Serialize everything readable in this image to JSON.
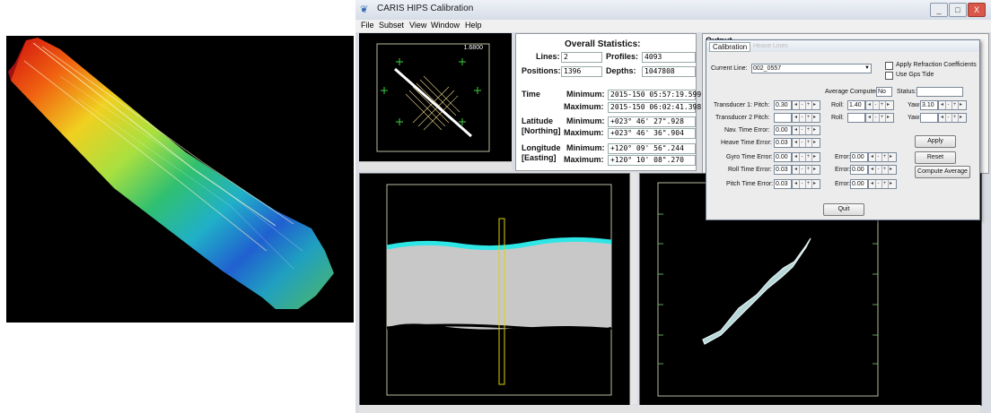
{
  "window": {
    "title": "CARIS HIPS Calibration",
    "controls": [
      "_",
      "□",
      "X"
    ]
  },
  "menu": [
    "File",
    "Subset",
    "View",
    "Window",
    "Help"
  ],
  "overview": {
    "scale_label": "1.6800"
  },
  "statistics": {
    "heading": "Overall Statistics:",
    "lines_label": "Lines:",
    "lines_value": "2",
    "profiles_label": "Profiles:",
    "profiles_value": "4093",
    "positions_label": "Positions:",
    "positions_value": "1396",
    "depths_label": "Depths:",
    "depths_value": "1047808",
    "time_label": "Time",
    "latitude_label": "Latitude",
    "latitude_sub": "[Northing]",
    "longitude_label": "Longitude",
    "longitude_sub": "[Easting]",
    "minimum_label": "Minimum:",
    "maximum_label": "Maximum:",
    "time_min": "2015-150 05:57:19.599",
    "time_max": "2015-150 06:02:41.398",
    "lat_min": "+023° 46' 27\".928",
    "lat_max": "+023° 46' 36\".904",
    "lon_min": "+120° 09' 56\".244",
    "lon_max": "+120° 10' 08\".270"
  },
  "output_pane": {
    "label": "Output"
  },
  "calibration": {
    "tabs": [
      "Calibration",
      "Heave",
      "Lines"
    ],
    "current_line_label": "Current Line:",
    "current_line_value": "002_0557",
    "apply_refraction_label": "Apply Refraction Coefficients",
    "use_gps_tide_label": "Use Gps Tide",
    "average_computed_label": "Average Computed:",
    "average_computed_value": "No",
    "status_label": "Status:",
    "status_value": "",
    "transducer1_pitch_label": "Transducer 1: Pitch:",
    "transducer1_pitch_value": "0.30",
    "transducer2_pitch_label": "Transducer 2 Pitch:",
    "transducer2_pitch_value": "",
    "roll_label": "Roll:",
    "roll1_value": "1.40",
    "roll2_value": "",
    "yaw_label": "Yaw:",
    "yaw1_value": "3.10",
    "yaw2_value": "",
    "nav_time_error_label": "Nav. Time Error:",
    "nav_time_error_value": "0.00",
    "heave_time_error_label": "Heave Time Error:",
    "heave_time_error_value": "0.03",
    "gyro_time_error_label": "Gyro Time Error:",
    "gyro_time_error_value": "0.00",
    "roll_time_error_label": "Roll Time Error:",
    "roll_time_error_value": "0.03",
    "pitch_time_error_label": "Pitch Time Error:",
    "pitch_time_error_value": "0.03",
    "error_label": "Error:",
    "error_gyro_value": "0.00",
    "error_roll_value": "0.00",
    "error_pitch_value": "0.00",
    "apply_button": "Apply",
    "reset_button": "Reset",
    "compute_average_button": "Compute Average",
    "quit_button": "Quit"
  },
  "colors": {
    "overview_track": "#ffffff",
    "overview_grid": "#e7d28a",
    "profile_water": "#2ee6e6",
    "profile_body": "#c8c8c8",
    "subset_swath": "#b6d6d8",
    "frame": "#e8e8c8"
  }
}
